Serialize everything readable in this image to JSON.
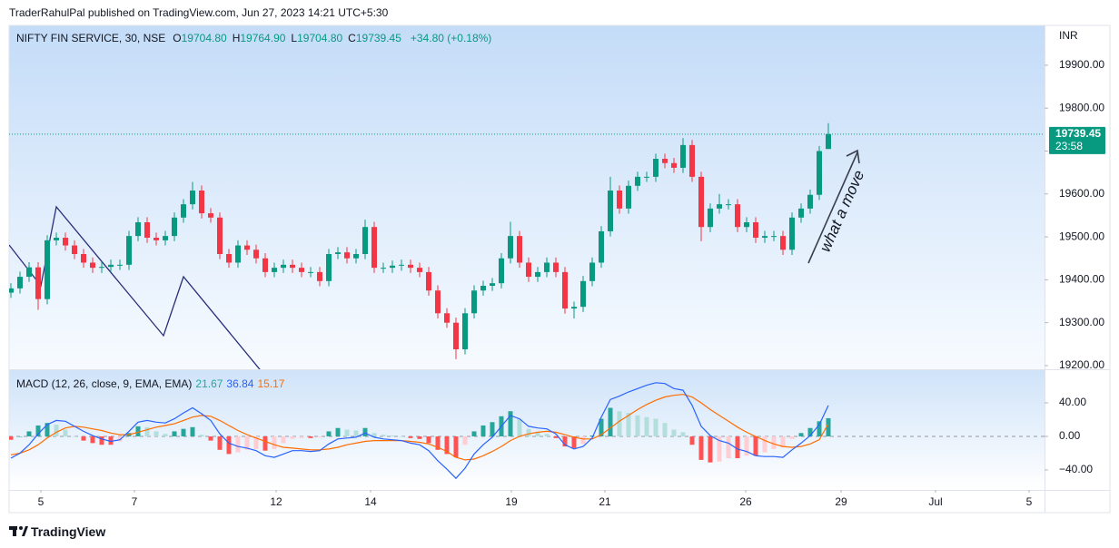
{
  "header": {
    "byline": "TraderRahulPal published on TradingView.com, Jun 27, 2023 14:21 UTC+5:30"
  },
  "footer": {
    "logo": "TradingView"
  },
  "chart_data": [
    {
      "type": "candlestick",
      "title": "NIFTY FIN SERVICE, 30, NSE",
      "ohlc_legend": [
        {
          "key": "O",
          "text": "19704.80"
        },
        {
          "key": "H",
          "text": "19764.90"
        },
        {
          "key": "L",
          "text": "19704.80"
        },
        {
          "key": "C",
          "text": "19739.45"
        }
      ],
      "change": "+34.80 (+0.18%)",
      "currency": "INR",
      "last_price": 19739.45,
      "countdown": "23:58",
      "annotation": "what a move",
      "up_color": "#089981",
      "down_color": "#f23645",
      "legend_value_color": "#089981",
      "xlim": [
        -0.2,
        113.8
      ],
      "ylim": [
        19191.5,
        19992.8
      ],
      "yticks": [
        {
          "value": 19200,
          "label": "19200.00"
        },
        {
          "value": 19300,
          "label": "19300.00"
        },
        {
          "value": 19400,
          "label": "19400.00"
        },
        {
          "value": 19500,
          "label": "19500.00"
        },
        {
          "value": 19600,
          "label": "19600.00"
        },
        {
          "value": 19700,
          "label": "19700.00"
        },
        {
          "value": 19800,
          "label": "19800.00"
        },
        {
          "value": 19900,
          "label": "19900.00"
        }
      ],
      "open": [
        19370,
        19380,
        19407,
        19429,
        19355,
        19492,
        19498,
        19480,
        19460,
        19440,
        19428,
        19430,
        19435,
        19435,
        19502,
        19534,
        19498,
        19492,
        19502,
        19545,
        19576,
        19608,
        19555,
        19545,
        19460,
        19440,
        19480,
        19470,
        19450,
        19418,
        19428,
        19435,
        19428,
        19418,
        19418,
        19397,
        19460,
        19464,
        19450,
        19460,
        19523,
        19428,
        19428,
        19433,
        19435,
        19428,
        19418,
        19375,
        19322,
        19300,
        19238,
        19322,
        19375,
        19386,
        19392,
        19450,
        19502,
        19440,
        19407,
        19418,
        19440,
        19418,
        19333,
        19337,
        19397,
        19440,
        19513,
        19608,
        19566,
        19619,
        19640,
        19640,
        19682,
        19672,
        19661,
        19714,
        19640,
        19523,
        19566,
        19576,
        19576,
        19523,
        19534,
        19498,
        19502,
        19502,
        19470,
        19545,
        19566,
        19598,
        19704.8
      ],
      "high": [
        19392,
        19419,
        19441,
        19441,
        19504,
        19510,
        19510,
        19492,
        19472,
        19452,
        19442,
        19447,
        19447,
        19514,
        19546,
        19546,
        19510,
        19514,
        19557,
        19588,
        19628,
        19620,
        19567,
        19557,
        19472,
        19492,
        19492,
        19482,
        19462,
        19440,
        19447,
        19447,
        19440,
        19430,
        19430,
        19472,
        19476,
        19476,
        19472,
        19540,
        19535,
        19440,
        19445,
        19447,
        19447,
        19440,
        19430,
        19387,
        19334,
        19312,
        19334,
        19387,
        19398,
        19404,
        19462,
        19535,
        19514,
        19452,
        19430,
        19452,
        19452,
        19430,
        19349,
        19409,
        19452,
        19525,
        19640,
        19620,
        19631,
        19652,
        19652,
        19694,
        19694,
        19684,
        19730,
        19726,
        19652,
        19578,
        19600,
        19588,
        19588,
        19546,
        19546,
        19514,
        19514,
        19514,
        19557,
        19578,
        19610,
        19712,
        19764.9
      ],
      "low": [
        19358,
        19368,
        19395,
        19330,
        19343,
        19480,
        19468,
        19448,
        19428,
        19416,
        19416,
        19418,
        19423,
        19423,
        19490,
        19486,
        19480,
        19480,
        19490,
        19533,
        19564,
        19543,
        19533,
        19448,
        19428,
        19428,
        19458,
        19438,
        19406,
        19406,
        19416,
        19416,
        19406,
        19406,
        19385,
        19385,
        19448,
        19438,
        19438,
        19448,
        19416,
        19416,
        19416,
        19421,
        19416,
        19406,
        19363,
        19310,
        19288,
        19215,
        19226,
        19310,
        19363,
        19374,
        19380,
        19438,
        19428,
        19395,
        19395,
        19406,
        19406,
        19321,
        19310,
        19325,
        19385,
        19428,
        19501,
        19554,
        19554,
        19607,
        19628,
        19628,
        19660,
        19649,
        19649,
        19628,
        19490,
        19511,
        19554,
        19564,
        19511,
        19511,
        19486,
        19486,
        19490,
        19458,
        19458,
        19533,
        19554,
        19586,
        19704.8
      ],
      "close": [
        19380,
        19407,
        19429,
        19355,
        19492,
        19498,
        19480,
        19460,
        19440,
        19428,
        19430,
        19435,
        19435,
        19502,
        19534,
        19498,
        19492,
        19502,
        19545,
        19576,
        19608,
        19555,
        19545,
        19460,
        19440,
        19480,
        19470,
        19450,
        19418,
        19428,
        19435,
        19428,
        19418,
        19418,
        19397,
        19460,
        19464,
        19450,
        19460,
        19523,
        19428,
        19428,
        19433,
        19435,
        19428,
        19418,
        19375,
        19322,
        19300,
        19238,
        19322,
        19375,
        19386,
        19392,
        19450,
        19502,
        19440,
        19407,
        19418,
        19440,
        19418,
        19333,
        19337,
        19397,
        19440,
        19513,
        19608,
        19566,
        19619,
        19640,
        19640,
        19682,
        19672,
        19661,
        19714,
        19640,
        19523,
        19566,
        19576,
        19576,
        19523,
        19534,
        19498,
        19502,
        19502,
        19470,
        19545,
        19566,
        19598,
        19700,
        19739.45
      ]
    },
    {
      "type": "macd",
      "title": "MACD (12, 26, close, 9, EMA, EMA)",
      "xlim": [
        -0.2,
        113.8
      ],
      "ylim": [
        -63.8,
        78.9
      ],
      "yticks": [
        {
          "value": 40,
          "label": "40.00"
        },
        {
          "value": 0,
          "label": "0.00"
        },
        {
          "value": -40,
          "label": "−40.00"
        }
      ],
      "xticks": [
        {
          "value": 3.3,
          "label": "5"
        },
        {
          "value": 13.6,
          "label": "7"
        },
        {
          "value": 29.2,
          "label": "12"
        },
        {
          "value": 39.6,
          "label": "14"
        },
        {
          "value": 55.1,
          "label": "19"
        },
        {
          "value": 65.4,
          "label": "21"
        },
        {
          "value": 80.9,
          "label": "26"
        },
        {
          "value": 91.4,
          "label": "29"
        },
        {
          "value": 101.8,
          "label": "Jul"
        },
        {
          "value": 112.1,
          "label": "5"
        }
      ],
      "histogram": {
        "value_label": "21.67",
        "color": "#26a69a",
        "colors": {
          "rise_above": "#26a69a",
          "fall_above": "#b2dfdb",
          "rise_below": "#ffcdd2",
          "fall_below": "#ff5252"
        },
        "values": [
          -4,
          0,
          6,
          13,
          16,
          14,
          8,
          0,
          -5,
          -8,
          -10,
          -10,
          -6,
          4,
          12,
          11,
          6,
          3,
          6,
          9,
          11,
          2,
          -5,
          -16,
          -21,
          -19,
          -16,
          -15,
          -17,
          -15,
          -8,
          -3,
          -2,
          -2,
          -1,
          6,
          10,
          8,
          7,
          10,
          4,
          2,
          1,
          0,
          -2,
          -3,
          -8,
          -16,
          -21,
          -25,
          -10,
          6,
          13,
          17,
          24,
          30,
          21,
          9,
          5,
          3,
          -2,
          -12,
          -14,
          -9,
          1,
          21,
          34,
          30,
          28,
          25,
          23,
          21,
          16,
          8,
          5,
          -10,
          -28,
          -31,
          -30,
          -26,
          -26,
          -23,
          -23,
          -19,
          -15,
          -13,
          -3,
          4,
          10,
          18,
          21.67
        ]
      },
      "macd": {
        "value_label": "36.84",
        "color": "#2962ff",
        "values": [
          -26,
          -20,
          -10,
          3,
          14,
          19,
          18,
          12,
          6,
          1,
          -3,
          -6,
          -4,
          6,
          17,
          19,
          17,
          16,
          21,
          28,
          34,
          27,
          19,
          3,
          -8,
          -12,
          -14,
          -17,
          -23,
          -25,
          -21,
          -17,
          -17,
          -18,
          -17,
          -9,
          -3,
          -2,
          -1,
          4,
          -1,
          -3,
          -4,
          -5,
          -8,
          -10,
          -17,
          -29,
          -39,
          -50,
          -38,
          -21,
          -10,
          -1,
          12,
          25,
          21,
          12,
          10,
          9,
          3,
          -10,
          -15,
          -12,
          -2,
          23,
          44,
          48,
          53,
          57,
          61,
          64,
          63,
          57,
          55,
          37,
          12,
          1,
          -5,
          -8,
          -15,
          -18,
          -23,
          -24,
          -24,
          -25,
          -16,
          -8,
          1,
          14,
          36.84
        ]
      },
      "signal": {
        "value_label": "15.17",
        "color": "#ff6d00",
        "values": [
          -22,
          -20,
          -16,
          -10,
          -2,
          5,
          10,
          12,
          11,
          9,
          7,
          4,
          2,
          2,
          5,
          8,
          11,
          13,
          15,
          19,
          23,
          25,
          24,
          19,
          13,
          7,
          2,
          -2,
          -6,
          -10,
          -13,
          -14,
          -15,
          -16,
          -16,
          -15,
          -13,
          -10,
          -8,
          -6,
          -5,
          -5,
          -5,
          -5,
          -6,
          -7,
          -9,
          -13,
          -18,
          -25,
          -28,
          -27,
          -23,
          -18,
          -12,
          -5,
          0,
          3,
          5,
          6,
          5,
          2,
          -1,
          -3,
          -3,
          2,
          10,
          18,
          25,
          32,
          38,
          43,
          47,
          49,
          50,
          47,
          40,
          32,
          25,
          18,
          11,
          5,
          0,
          -5,
          -9,
          -12,
          -13,
          -12,
          -9,
          -4,
          15.17
        ]
      }
    }
  ]
}
